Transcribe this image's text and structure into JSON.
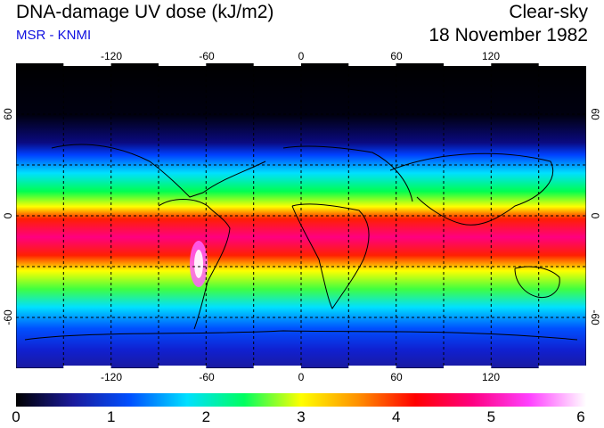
{
  "header": {
    "title": "DNA-damage UV dose (kJ/m2)",
    "source": "MSR - KNMI",
    "condition": "Clear-sky",
    "date": "18 November 1982"
  },
  "map": {
    "lon_ticks": [
      "-120",
      "-60",
      "0",
      "60",
      "120"
    ],
    "lat_ticks": [
      "60",
      "0",
      "-60"
    ],
    "gridlines": "dashed",
    "coastlines": true
  },
  "colorbar": {
    "ticks": [
      "0",
      "1",
      "2",
      "3",
      "4",
      "5",
      "6"
    ],
    "colors": [
      "#000000",
      "#1a1a9c",
      "#0050ff",
      "#00e0ff",
      "#00ff60",
      "#ffff00",
      "#ff9000",
      "#ff0000",
      "#ff0080",
      "#ff40ff",
      "#ffffff"
    ]
  }
}
